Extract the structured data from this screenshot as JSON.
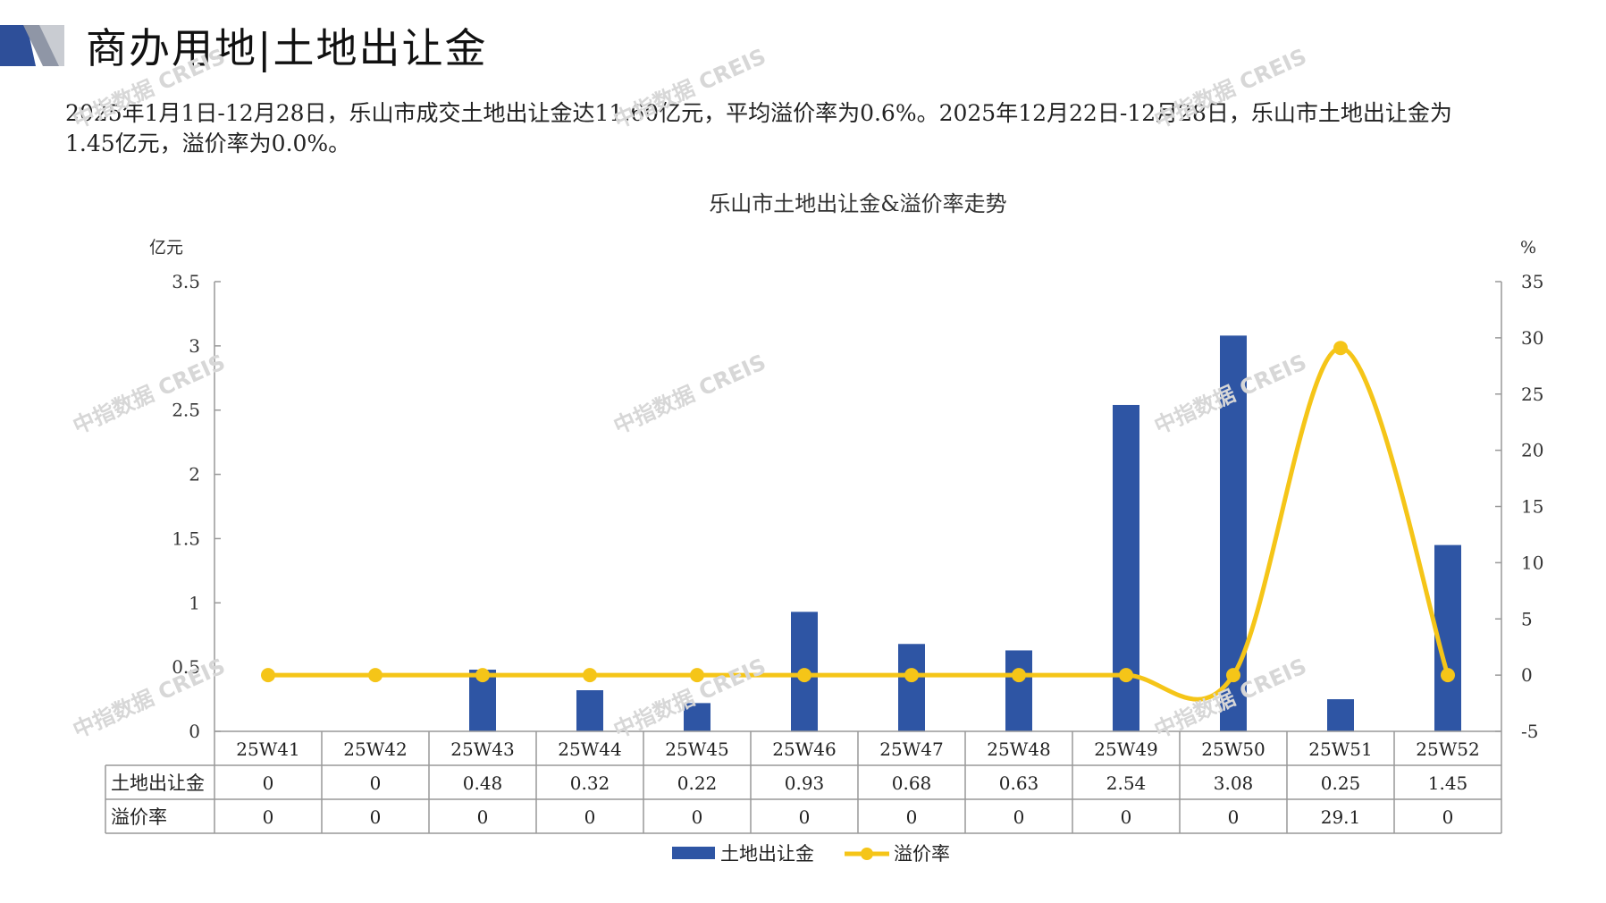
{
  "header": {
    "title": "商办用地|土地出让金"
  },
  "summary": {
    "line1": "2025年1月1日-12月28日，乐山市成交土地出让金达11.60亿元，平均溢价率为0.6%。2025年12月22日-12月28日，乐山市土地出让金为",
    "line2": "1.45亿元，溢价率为0.0%。"
  },
  "watermark": "中指数据 CREIS",
  "colors": {
    "bar": "#2e55a4",
    "line": "#f5c518",
    "axis": "#999999",
    "deco_dark": "#2e4f99",
    "deco_light": "#c9ccd2"
  },
  "chart_data": {
    "type": "bar+line",
    "title": "乐山市土地出让金&溢价率走势",
    "left_unit": "亿元",
    "right_unit": "%",
    "categories": [
      "25W41",
      "25W42",
      "25W43",
      "25W44",
      "25W45",
      "25W46",
      "25W47",
      "25W48",
      "25W49",
      "25W50",
      "25W51",
      "25W52"
    ],
    "left_ticks": [
      "3.5",
      "3",
      "2.5",
      "2",
      "1.5",
      "1",
      "0.5",
      "0"
    ],
    "right_ticks": [
      "35",
      "30",
      "25",
      "20",
      "15",
      "10",
      "5",
      "0",
      "-5"
    ],
    "ylim_left": [
      0,
      3.5
    ],
    "ylim_right": [
      -5,
      35
    ],
    "series": [
      {
        "name": "土地出让金",
        "type": "bar",
        "axis": "left",
        "values": [
          0,
          0,
          0.48,
          0.32,
          0.22,
          0.93,
          0.68,
          0.63,
          2.54,
          3.08,
          0.25,
          1.45
        ],
        "labels": [
          "0",
          "0",
          "0.48",
          "0.32",
          "0.22",
          "0.93",
          "0.68",
          "0.63",
          "2.54",
          "3.08",
          "0.25",
          "1.45"
        ]
      },
      {
        "name": "溢价率",
        "type": "line",
        "axis": "right",
        "values": [
          0,
          0,
          0,
          0,
          0,
          0,
          0,
          0,
          0,
          0,
          29.1,
          0
        ],
        "labels": [
          "0",
          "0",
          "0",
          "0",
          "0",
          "0",
          "0",
          "0",
          "0",
          "0",
          "29.1",
          "0"
        ]
      }
    ],
    "legend_position": "bottom"
  }
}
